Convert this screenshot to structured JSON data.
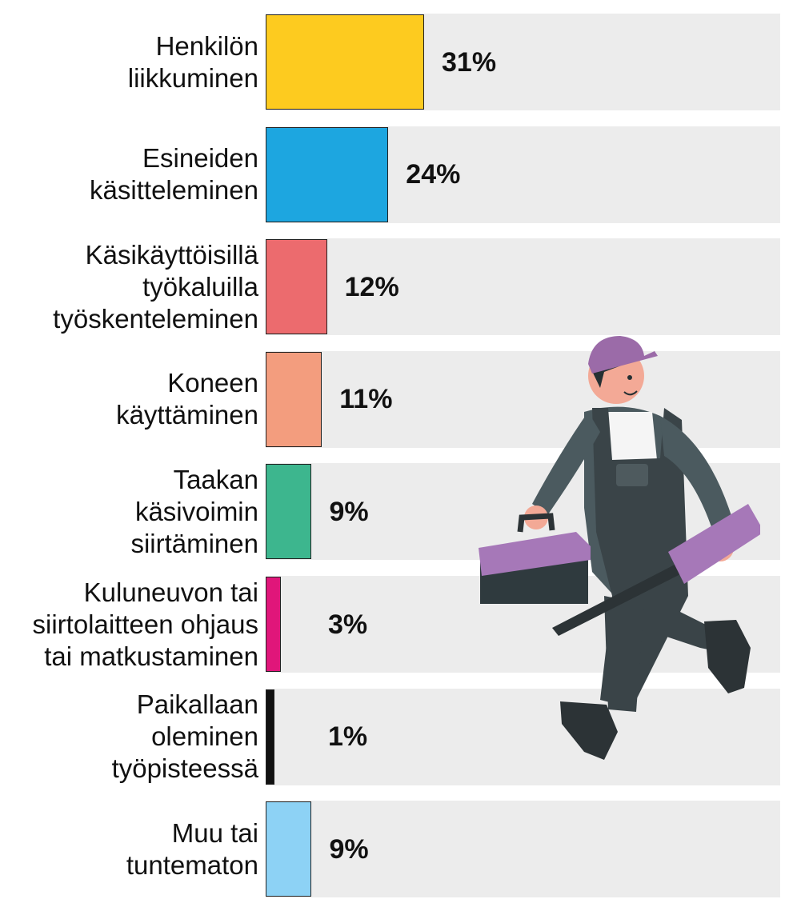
{
  "chart_data": {
    "type": "bar",
    "orientation": "horizontal",
    "categories": [
      [
        "Henkilön",
        "liikkuminen"
      ],
      [
        "Esineiden",
        "käsitteleminen"
      ],
      [
        "Käsikäyttöisillä",
        "työkaluilla",
        "työskenteleminen"
      ],
      [
        "Koneen",
        "käyttäminen"
      ],
      [
        "Taakan",
        "käsivoimin",
        "siirtäminen"
      ],
      [
        "Kuluneuvon tai",
        "siirtolaitteen ohjaus",
        "tai matkustaminen"
      ],
      [
        "Paikallaan",
        "oleminen",
        "työpisteessä"
      ],
      [
        "Muu tai",
        "tuntematon"
      ]
    ],
    "values": [
      31,
      24,
      12,
      11,
      9,
      3,
      1,
      9
    ],
    "value_labels": [
      "31%",
      "24%",
      "12%",
      "11%",
      "9%",
      "3%",
      "1%",
      "9%"
    ],
    "colors": [
      "#FDCB1F",
      "#1DA6E0",
      "#EC6B6E",
      "#F39D7E",
      "#3DB68E",
      "#E0167A",
      "#111111",
      "#8DD2F5"
    ],
    "xlim": [
      0,
      100
    ],
    "grid": false,
    "legend": "none"
  },
  "illustration": {
    "name": "worker-with-toolbox-and-screwdriver",
    "colors": {
      "cap": "#9B6BA8",
      "overalls": "#3A4448",
      "shirt": "#4B5A5F",
      "skin": "#F3A996",
      "toolbox": "#A678B8"
    }
  }
}
